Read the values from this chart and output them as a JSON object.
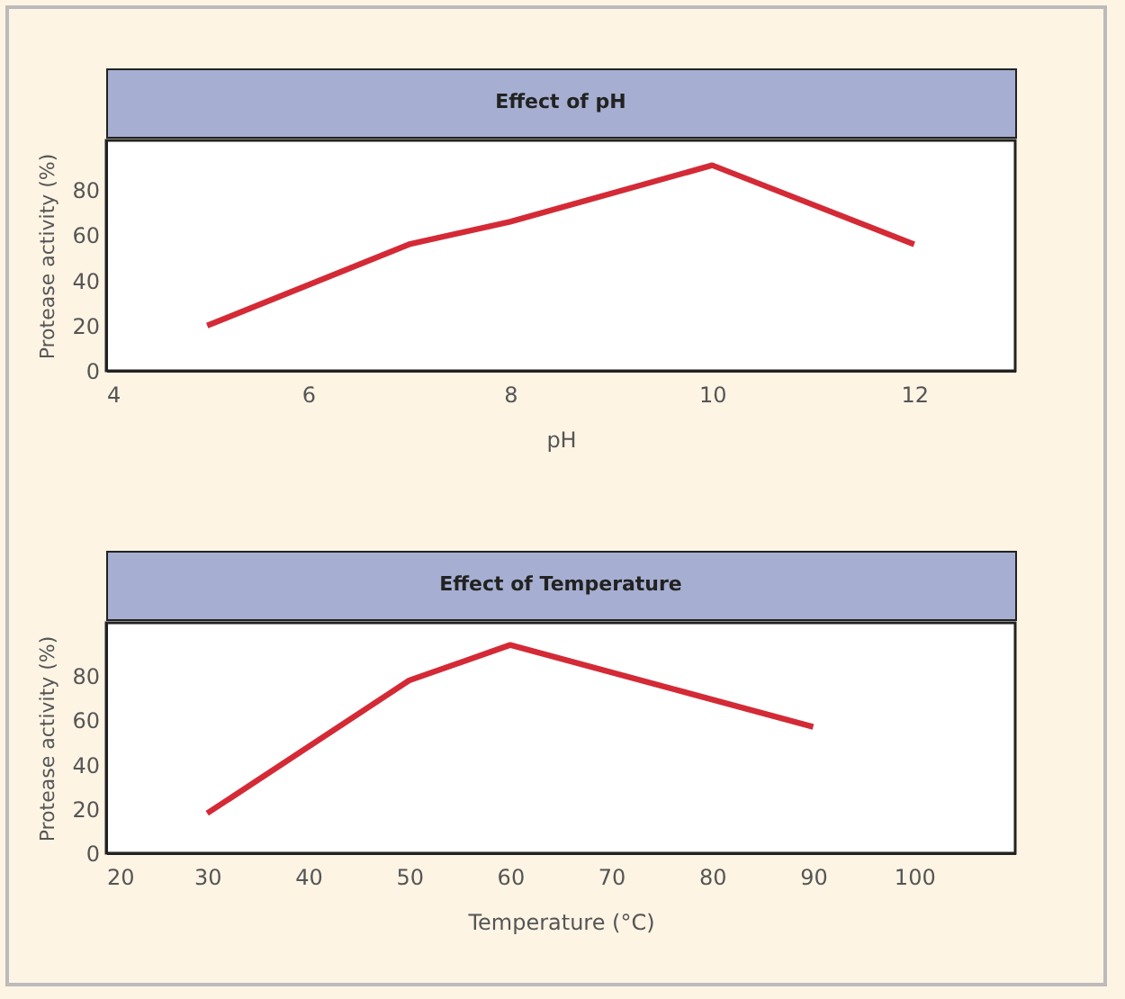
{
  "chart_data": [
    {
      "type": "line",
      "title": "Effect of pH",
      "xlabel": "pH",
      "ylabel": "Protease activity (%)",
      "x": [
        5,
        7,
        8,
        10,
        12
      ],
      "series": [
        {
          "color": "#d42a36",
          "values": [
            20,
            56,
            66,
            91,
            56
          ]
        }
      ],
      "xlim": [
        4,
        13
      ],
      "ylim": [
        0,
        102
      ],
      "xticks": [
        4,
        6,
        8,
        10,
        12
      ],
      "yticks": [
        0,
        20,
        40,
        60,
        80
      ],
      "grid": false
    },
    {
      "type": "line",
      "title": "Effect of Temperature",
      "xlabel": "Temperature (°C)",
      "ylabel": "Protease activity (%)",
      "x": [
        30,
        50,
        60,
        90
      ],
      "series": [
        {
          "color": "#d42a36",
          "values": [
            18,
            78,
            94,
            57
          ]
        }
      ],
      "xlim": [
        20,
        110
      ],
      "ylim": [
        0,
        104
      ],
      "xticks": [
        20,
        30,
        40,
        50,
        60,
        70,
        80,
        90,
        100
      ],
      "yticks": [
        0,
        20,
        40,
        60,
        80
      ],
      "grid": false
    }
  ]
}
